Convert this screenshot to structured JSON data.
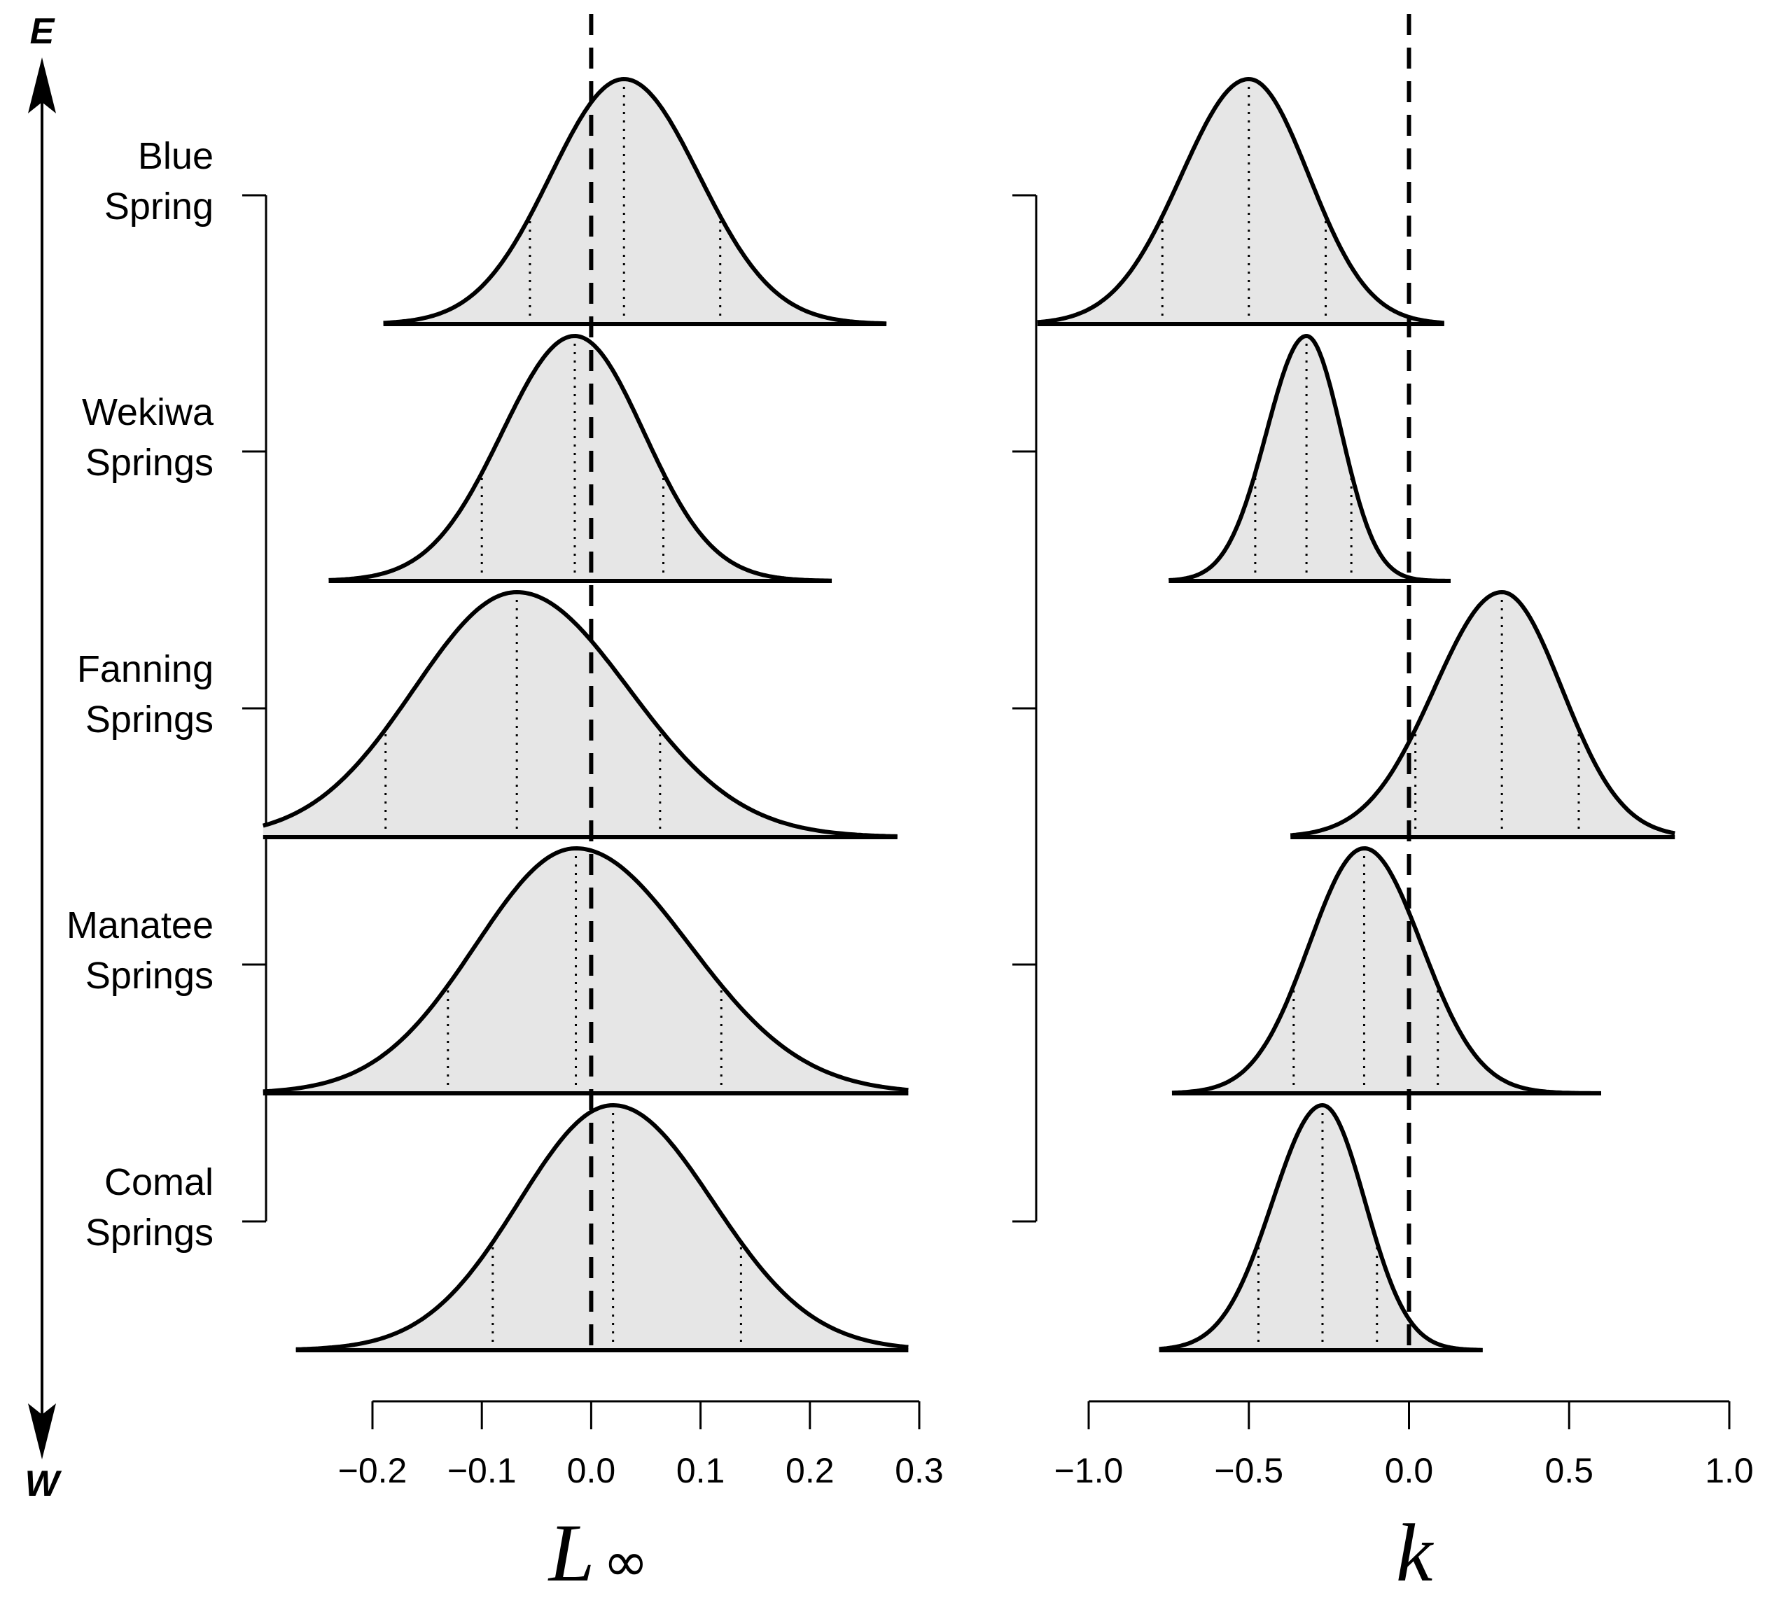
{
  "direction": {
    "top": "E",
    "bottom": "W"
  },
  "chart_data": [
    {
      "type": "density",
      "panel": "left",
      "xlabel_main": "L",
      "xlabel_sub": "∞",
      "xlim": [
        -0.2,
        0.3
      ],
      "ticks": [
        -0.2,
        -0.1,
        0.0,
        0.1,
        0.2,
        0.3
      ],
      "tick_labels": [
        "−0.2",
        "−0.1",
        "0.0",
        "0.1",
        "0.2",
        "0.3"
      ],
      "reference_line": 0.0,
      "series": [
        {
          "name": "Blue Spring",
          "label_lines": [
            "Blue",
            "Spring"
          ],
          "mode": 0.03,
          "q_low": -0.056,
          "q_high": 0.118,
          "range": [
            -0.19,
            0.27
          ]
        },
        {
          "name": "Wekiwa Springs",
          "label_lines": [
            "Wekiwa",
            "Springs"
          ],
          "mode": -0.015,
          "q_low": -0.1,
          "q_high": 0.066,
          "range": [
            -0.24,
            0.22
          ]
        },
        {
          "name": "Fanning Springs",
          "label_lines": [
            "Fanning",
            "Springs"
          ],
          "mode": -0.068,
          "q_low": -0.188,
          "q_high": 0.063,
          "range": [
            -0.3,
            0.28
          ]
        },
        {
          "name": "Manatee Springs",
          "label_lines": [
            "Manatee",
            "Springs"
          ],
          "mode": -0.014,
          "q_low": -0.131,
          "q_high": 0.119,
          "range": [
            -0.3,
            0.29
          ]
        },
        {
          "name": "Comal Springs",
          "label_lines": [
            "Comal",
            "Springs"
          ],
          "mode": 0.02,
          "q_low": -0.09,
          "q_high": 0.137,
          "range": [
            -0.27,
            0.29
          ]
        }
      ]
    },
    {
      "type": "density",
      "panel": "right",
      "xlabel_main": "k",
      "xlabel_sub": "",
      "xlim": [
        -1.0,
        1.0
      ],
      "ticks": [
        -1.0,
        -0.5,
        0.0,
        0.5,
        1.0
      ],
      "tick_labels": [
        "−1.0",
        "−0.5",
        "0.0",
        "0.5",
        "1.0"
      ],
      "reference_line": 0.0,
      "series": [
        {
          "name": "Blue Spring",
          "mode": -0.5,
          "q_low": -0.77,
          "q_high": -0.26,
          "range": [
            -1.16,
            0.11
          ]
        },
        {
          "name": "Wekiwa Springs",
          "mode": -0.32,
          "q_low": -0.48,
          "q_high": -0.18,
          "range": [
            -0.75,
            0.13
          ]
        },
        {
          "name": "Fanning Springs",
          "mode": 0.29,
          "q_low": 0.02,
          "q_high": 0.53,
          "range": [
            -0.37,
            0.83
          ]
        },
        {
          "name": "Manatee Springs",
          "mode": -0.14,
          "q_low": -0.36,
          "q_high": 0.09,
          "range": [
            -0.74,
            0.6
          ]
        },
        {
          "name": "Comal Springs",
          "mode": -0.27,
          "q_low": -0.47,
          "q_high": -0.1,
          "range": [
            -0.78,
            0.23
          ]
        }
      ]
    }
  ]
}
